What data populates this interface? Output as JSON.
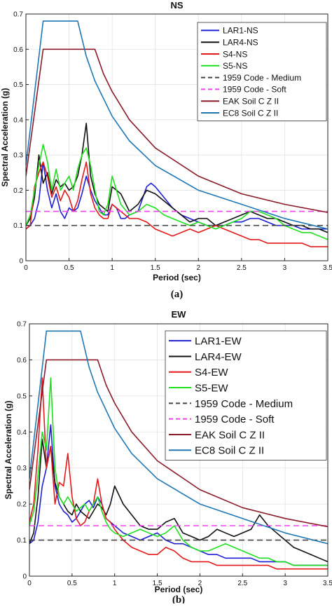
{
  "chart_data": [
    {
      "type": "line",
      "title": "NS",
      "caption": "(a)",
      "xlabel": "Period (sec)",
      "ylabel": "Spectral Acceleration (g)",
      "xlim": [
        0,
        3.5
      ],
      "ylim": [
        0,
        0.7
      ],
      "xticks": [
        "0",
        "0.5",
        "1",
        "1.5",
        "2",
        "2.5",
        "3",
        "3.5"
      ],
      "yticks": [
        "0",
        "0.1",
        "0.2",
        "0.3",
        "0.4",
        "0.5",
        "0.6",
        "0.7"
      ],
      "grid": true,
      "legend_position": "top-right",
      "series": [
        {
          "name": "LAR1-NS",
          "color": "#1f1fd6",
          "x": [
            0,
            0.05,
            0.1,
            0.15,
            0.2,
            0.25,
            0.3,
            0.35,
            0.4,
            0.45,
            0.5,
            0.55,
            0.6,
            0.65,
            0.7,
            0.75,
            0.8,
            0.85,
            0.9,
            0.95,
            1.0,
            1.05,
            1.1,
            1.15,
            1.2,
            1.3,
            1.4,
            1.45,
            1.5,
            1.6,
            1.7,
            1.8,
            1.9,
            2.0,
            2.1,
            2.2,
            2.3,
            2.4,
            2.5,
            2.6,
            2.7,
            2.8,
            2.9,
            3.0,
            3.1,
            3.2,
            3.3,
            3.4,
            3.5
          ],
          "y": [
            0.09,
            0.1,
            0.12,
            0.17,
            0.28,
            0.2,
            0.15,
            0.19,
            0.14,
            0.12,
            0.15,
            0.14,
            0.15,
            0.19,
            0.24,
            0.2,
            0.17,
            0.15,
            0.13,
            0.13,
            0.16,
            0.15,
            0.12,
            0.12,
            0.13,
            0.14,
            0.21,
            0.22,
            0.21,
            0.18,
            0.15,
            0.13,
            0.12,
            0.11,
            0.1,
            0.1,
            0.1,
            0.11,
            0.11,
            0.12,
            0.12,
            0.11,
            0.1,
            0.1,
            0.1,
            0.09,
            0.09,
            0.09,
            0.09
          ]
        },
        {
          "name": "LAR4-NS",
          "color": "#111111",
          "x": [
            0,
            0.05,
            0.1,
            0.15,
            0.2,
            0.25,
            0.3,
            0.35,
            0.4,
            0.45,
            0.5,
            0.55,
            0.6,
            0.65,
            0.7,
            0.75,
            0.8,
            0.85,
            0.9,
            0.95,
            1.0,
            1.1,
            1.2,
            1.3,
            1.4,
            1.5,
            1.6,
            1.7,
            1.8,
            1.9,
            2.0,
            2.1,
            2.2,
            2.3,
            2.4,
            2.5,
            2.6,
            2.7,
            2.8,
            2.9,
            3.0,
            3.1,
            3.2,
            3.3,
            3.4,
            3.5
          ],
          "y": [
            0.1,
            0.12,
            0.18,
            0.3,
            0.22,
            0.25,
            0.19,
            0.23,
            0.21,
            0.22,
            0.2,
            0.21,
            0.24,
            0.3,
            0.39,
            0.24,
            0.19,
            0.16,
            0.15,
            0.14,
            0.21,
            0.19,
            0.14,
            0.16,
            0.2,
            0.19,
            0.17,
            0.15,
            0.13,
            0.11,
            0.12,
            0.12,
            0.1,
            0.11,
            0.12,
            0.13,
            0.14,
            0.13,
            0.12,
            0.12,
            0.11,
            0.1,
            0.1,
            0.09,
            0.09,
            0.08
          ]
        },
        {
          "name": "S4-NS",
          "color": "#e41a1a",
          "x": [
            0,
            0.05,
            0.1,
            0.15,
            0.2,
            0.25,
            0.3,
            0.35,
            0.4,
            0.45,
            0.5,
            0.55,
            0.6,
            0.65,
            0.7,
            0.75,
            0.8,
            0.85,
            0.9,
            0.95,
            1.0,
            1.1,
            1.2,
            1.3,
            1.4,
            1.5,
            1.6,
            1.7,
            1.8,
            1.9,
            2.0,
            2.1,
            2.2,
            2.3,
            2.4,
            2.5,
            2.6,
            2.7,
            2.8,
            2.9,
            3.0,
            3.1,
            3.2,
            3.3,
            3.4,
            3.5
          ],
          "y": [
            0.09,
            0.1,
            0.21,
            0.25,
            0.28,
            0.24,
            0.18,
            0.21,
            0.17,
            0.2,
            0.18,
            0.14,
            0.17,
            0.23,
            0.28,
            0.19,
            0.15,
            0.13,
            0.12,
            0.12,
            0.16,
            0.14,
            0.12,
            0.12,
            0.11,
            0.09,
            0.08,
            0.07,
            0.08,
            0.09,
            0.08,
            0.09,
            0.1,
            0.09,
            0.08,
            0.07,
            0.06,
            0.06,
            0.05,
            0.05,
            0.05,
            0.05,
            0.05,
            0.04,
            0.04,
            0.04
          ]
        },
        {
          "name": "S5-NS",
          "color": "#1fe01f",
          "x": [
            0,
            0.05,
            0.1,
            0.15,
            0.2,
            0.25,
            0.3,
            0.35,
            0.4,
            0.45,
            0.5,
            0.55,
            0.6,
            0.65,
            0.7,
            0.75,
            0.8,
            0.85,
            0.9,
            0.95,
            1.0,
            1.1,
            1.2,
            1.3,
            1.4,
            1.5,
            1.6,
            1.7,
            1.8,
            1.9,
            2.0,
            2.1,
            2.2,
            2.3,
            2.4,
            2.5,
            2.6,
            2.7,
            2.8,
            2.9,
            3.0,
            3.1,
            3.2,
            3.3,
            3.4,
            3.5
          ],
          "y": [
            0.1,
            0.13,
            0.2,
            0.27,
            0.33,
            0.28,
            0.2,
            0.26,
            0.2,
            0.22,
            0.24,
            0.2,
            0.26,
            0.3,
            0.32,
            0.27,
            0.2,
            0.14,
            0.13,
            0.16,
            0.24,
            0.16,
            0.13,
            0.14,
            0.16,
            0.15,
            0.13,
            0.12,
            0.11,
            0.1,
            0.11,
            0.1,
            0.09,
            0.1,
            0.11,
            0.12,
            0.14,
            0.14,
            0.13,
            0.12,
            0.1,
            0.09,
            0.08,
            0.08,
            0.07,
            0.06
          ]
        },
        {
          "name": "1959 Code - Medium",
          "color": "#444444",
          "dash": "8,5",
          "x": [
            0,
            3.5
          ],
          "y": [
            0.1,
            0.1
          ]
        },
        {
          "name": "1959 Code - Soft",
          "color": "#ee44ee",
          "dash": "8,5",
          "x": [
            0,
            3.5
          ],
          "y": [
            0.14,
            0.14
          ]
        },
        {
          "name": "EAK Soil C Z II",
          "color": "#8b1a2b",
          "x": [
            0,
            0.2,
            0.5,
            0.8,
            0.9,
            1.0,
            1.2,
            1.5,
            2.0,
            2.5,
            3.0,
            3.5
          ],
          "y": [
            0.24,
            0.6,
            0.6,
            0.6,
            0.53,
            0.48,
            0.4,
            0.32,
            0.24,
            0.19,
            0.16,
            0.137
          ]
        },
        {
          "name": "EC8 Soil C Z II",
          "color": "#1f77b4",
          "x": [
            0,
            0.2,
            0.4,
            0.6,
            0.7,
            0.8,
            1.0,
            1.2,
            1.5,
            2.0,
            2.5,
            3.0,
            3.5
          ],
          "y": [
            0.27,
            0.68,
            0.68,
            0.68,
            0.58,
            0.51,
            0.41,
            0.34,
            0.27,
            0.2,
            0.16,
            0.12,
            0.09
          ]
        }
      ]
    },
    {
      "type": "line",
      "title": "EW",
      "caption": "(b)",
      "xlabel": "Period (sec)",
      "ylabel": "Spectral Acceleration (g)",
      "xlim": [
        0,
        3.5
      ],
      "ylim": [
        0,
        0.7
      ],
      "xticks": [
        "0",
        "0.5",
        "1",
        "1.5",
        "2",
        "2.5",
        "3",
        "3.5"
      ],
      "yticks": [
        "0",
        "0.1",
        "0.2",
        "0.3",
        "0.4",
        "0.5",
        "0.6",
        "0.7"
      ],
      "grid": true,
      "legend_position": "top-right",
      "series": [
        {
          "name": "LAR1-EW",
          "color": "#1f1fd6",
          "x": [
            0,
            0.05,
            0.1,
            0.15,
            0.2,
            0.25,
            0.3,
            0.35,
            0.4,
            0.45,
            0.5,
            0.55,
            0.6,
            0.65,
            0.7,
            0.75,
            0.8,
            0.85,
            0.9,
            0.95,
            1.0,
            1.1,
            1.2,
            1.3,
            1.4,
            1.5,
            1.6,
            1.7,
            1.8,
            1.9,
            2.0,
            2.1,
            2.2,
            2.3,
            2.4,
            2.5,
            2.6,
            2.7,
            2.8,
            2.9,
            3.0,
            3.1,
            3.2,
            3.3,
            3.4,
            3.5
          ],
          "y": [
            0.09,
            0.1,
            0.15,
            0.25,
            0.3,
            0.42,
            0.25,
            0.2,
            0.18,
            0.17,
            0.15,
            0.16,
            0.18,
            0.2,
            0.21,
            0.19,
            0.22,
            0.2,
            0.16,
            0.15,
            0.14,
            0.12,
            0.11,
            0.1,
            0.11,
            0.12,
            0.1,
            0.09,
            0.09,
            0.08,
            0.07,
            0.06,
            0.06,
            0.05,
            0.05,
            0.05,
            0.05,
            0.04,
            0.04,
            0.04,
            0.04,
            0.03,
            0.03,
            0.03,
            0.03,
            0.03
          ]
        },
        {
          "name": "LAR4-EW",
          "color": "#111111",
          "x": [
            0,
            0.05,
            0.1,
            0.15,
            0.2,
            0.25,
            0.3,
            0.35,
            0.4,
            0.45,
            0.5,
            0.55,
            0.6,
            0.65,
            0.7,
            0.75,
            0.8,
            0.85,
            0.9,
            0.95,
            1.0,
            1.1,
            1.2,
            1.3,
            1.4,
            1.5,
            1.6,
            1.7,
            1.8,
            1.9,
            2.0,
            2.1,
            2.2,
            2.3,
            2.4,
            2.5,
            2.6,
            2.7,
            2.8,
            2.9,
            3.0,
            3.1,
            3.2,
            3.3,
            3.4,
            3.5
          ],
          "y": [
            0.09,
            0.12,
            0.22,
            0.38,
            0.3,
            0.36,
            0.26,
            0.22,
            0.2,
            0.18,
            0.17,
            0.2,
            0.18,
            0.17,
            0.16,
            0.18,
            0.2,
            0.19,
            0.17,
            0.2,
            0.25,
            0.2,
            0.17,
            0.14,
            0.13,
            0.13,
            0.15,
            0.16,
            0.12,
            0.11,
            0.1,
            0.11,
            0.13,
            0.12,
            0.11,
            0.12,
            0.13,
            0.17,
            0.14,
            0.12,
            0.1,
            0.08,
            0.07,
            0.06,
            0.05,
            0.04
          ]
        },
        {
          "name": "S4-EW",
          "color": "#e41a1a",
          "x": [
            0,
            0.05,
            0.1,
            0.15,
            0.2,
            0.25,
            0.3,
            0.35,
            0.4,
            0.45,
            0.5,
            0.55,
            0.6,
            0.65,
            0.7,
            0.75,
            0.8,
            0.85,
            0.9,
            0.95,
            1.0,
            1.1,
            1.2,
            1.3,
            1.4,
            1.5,
            1.6,
            1.7,
            1.8,
            1.9,
            2.0,
            2.1,
            2.2,
            2.3,
            2.4,
            2.5,
            2.6,
            2.7,
            2.8,
            2.9,
            3.0,
            3.1,
            3.2,
            3.3,
            3.4,
            3.5
          ],
          "y": [
            0.15,
            0.2,
            0.35,
            0.55,
            0.3,
            0.36,
            0.2,
            0.26,
            0.25,
            0.34,
            0.22,
            0.16,
            0.14,
            0.15,
            0.18,
            0.2,
            0.27,
            0.2,
            0.16,
            0.15,
            0.13,
            0.1,
            0.08,
            0.07,
            0.06,
            0.06,
            0.08,
            0.07,
            0.05,
            0.04,
            0.04,
            0.04,
            0.03,
            0.03,
            0.03,
            0.03,
            0.03,
            0.03,
            0.03,
            0.02,
            0.02,
            0.02,
            0.02,
            0.02,
            0.02,
            0.02
          ]
        },
        {
          "name": "S5-EW",
          "color": "#1fe01f",
          "x": [
            0,
            0.05,
            0.1,
            0.15,
            0.2,
            0.25,
            0.3,
            0.35,
            0.4,
            0.45,
            0.5,
            0.55,
            0.6,
            0.65,
            0.7,
            0.75,
            0.8,
            0.85,
            0.9,
            0.95,
            1.0,
            1.1,
            1.2,
            1.3,
            1.4,
            1.5,
            1.6,
            1.7,
            1.8,
            1.9,
            2.0,
            2.1,
            2.2,
            2.3,
            2.4,
            2.5,
            2.6,
            2.7,
            2.8,
            2.9,
            3.0,
            3.1,
            3.2,
            3.3,
            3.4,
            3.5
          ],
          "y": [
            0.14,
            0.18,
            0.28,
            0.4,
            0.35,
            0.55,
            0.3,
            0.22,
            0.2,
            0.22,
            0.2,
            0.18,
            0.19,
            0.2,
            0.18,
            0.2,
            0.22,
            0.18,
            0.15,
            0.13,
            0.12,
            0.11,
            0.12,
            0.13,
            0.12,
            0.11,
            0.12,
            0.14,
            0.1,
            0.08,
            0.07,
            0.07,
            0.08,
            0.09,
            0.08,
            0.07,
            0.06,
            0.05,
            0.05,
            0.04,
            0.04,
            0.03,
            0.03,
            0.03,
            0.03,
            0.03
          ]
        },
        {
          "name": "1959 Code - Medium",
          "color": "#444444",
          "dash": "8,5",
          "x": [
            0,
            3.5
          ],
          "y": [
            0.1,
            0.1
          ]
        },
        {
          "name": "1959 Code - Soft",
          "color": "#ee44ee",
          "dash": "8,5",
          "x": [
            0,
            3.5
          ],
          "y": [
            0.14,
            0.14
          ]
        },
        {
          "name": "EAK Soil C Z II",
          "color": "#8b1a2b",
          "x": [
            0,
            0.2,
            0.5,
            0.8,
            0.9,
            1.0,
            1.2,
            1.5,
            2.0,
            2.5,
            3.0,
            3.5
          ],
          "y": [
            0.24,
            0.6,
            0.6,
            0.6,
            0.53,
            0.48,
            0.4,
            0.32,
            0.24,
            0.19,
            0.16,
            0.137
          ]
        },
        {
          "name": "EC8 Soil C Z II",
          "color": "#1f77b4",
          "x": [
            0,
            0.2,
            0.4,
            0.6,
            0.7,
            0.8,
            1.0,
            1.2,
            1.5,
            2.0,
            2.5,
            3.0,
            3.5
          ],
          "y": [
            0.27,
            0.68,
            0.68,
            0.68,
            0.58,
            0.51,
            0.41,
            0.34,
            0.27,
            0.2,
            0.16,
            0.12,
            0.09
          ]
        }
      ]
    }
  ]
}
